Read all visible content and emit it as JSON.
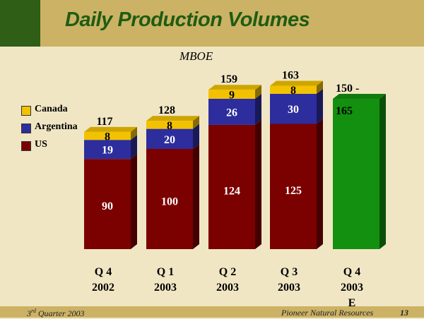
{
  "header": {
    "title": "Daily Production Volumes"
  },
  "chart_data": {
    "type": "bar",
    "title": "Daily Production Volumes",
    "ylabel": "MBOE",
    "categories": [
      [
        "Q 4",
        "2002"
      ],
      [
        "Q 1",
        "2003"
      ],
      [
        "Q 2",
        "2003"
      ],
      [
        "Q 3",
        "2003"
      ],
      [
        "Q 4",
        "2003",
        "E"
      ]
    ],
    "series": [
      {
        "name": "US",
        "color": "#7b0000",
        "values": [
          90,
          100,
          124,
          125,
          null
        ]
      },
      {
        "name": "Argentina",
        "color": "#2d2d9e",
        "values": [
          19,
          20,
          26,
          30,
          null
        ]
      },
      {
        "name": "Canada",
        "color": "#f2c200",
        "values": [
          8,
          8,
          9,
          8,
          null
        ]
      }
    ],
    "totals": [
      "117",
      "128",
      "159",
      "163",
      "150 -\n165"
    ],
    "estimate": {
      "low": 150,
      "high": 165,
      "color": "#13900f"
    },
    "ylim": [
      0,
      180
    ],
    "grid": false,
    "legend": "left"
  },
  "footer": {
    "quarter_num": "3",
    "quarter_suffix": "rd",
    "quarter_text": "Quarter 2003",
    "company": "Pioneer Natural Resources",
    "page": "13"
  }
}
